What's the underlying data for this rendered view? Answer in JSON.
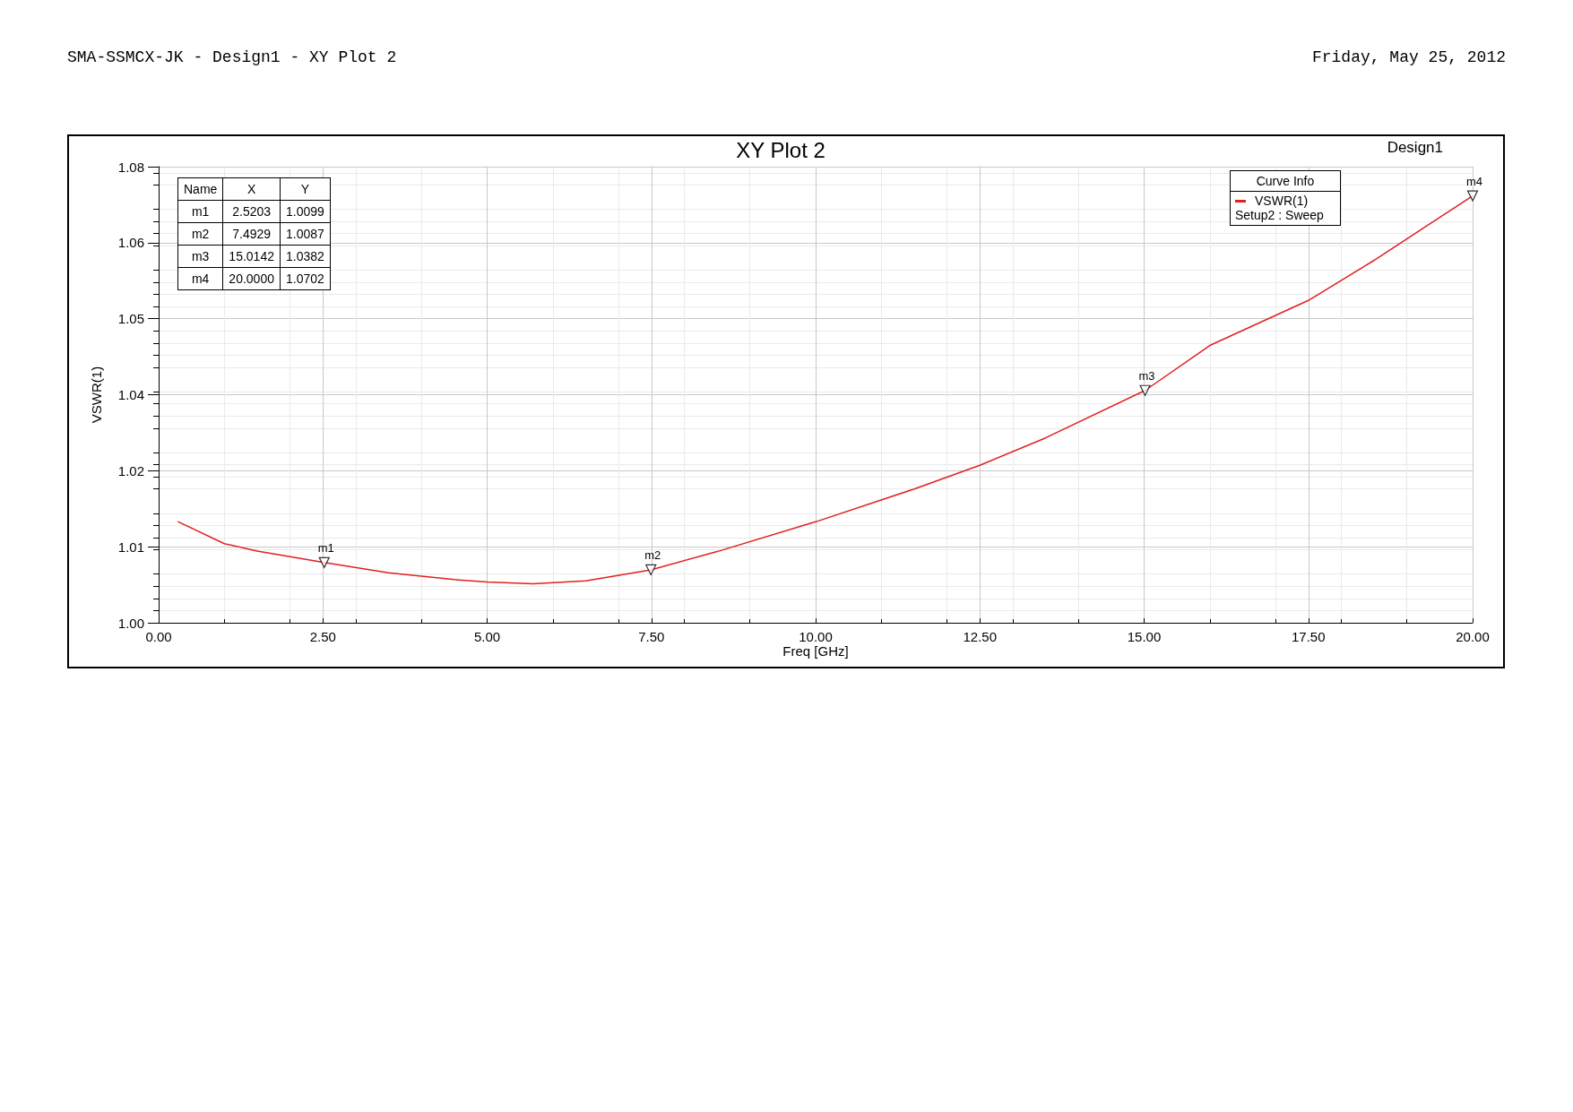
{
  "chart_data": [
    {
      "type": "line",
      "title": "XY Plot 2",
      "xlabel": "Freq [GHz]",
      "ylabel": "VSWR(1)",
      "legend_title": "Curve Info",
      "legend": "top right",
      "grid": true,
      "xlim": [
        0,
        20
      ],
      "xticks": [
        {
          "value": 0,
          "label": "0.00"
        },
        {
          "value": 2.5,
          "label": "2.50"
        },
        {
          "value": 5,
          "label": "5.00"
        },
        {
          "value": 7.5,
          "label": "7.50"
        },
        {
          "value": 10,
          "label": "10.00"
        },
        {
          "value": 12.5,
          "label": "12.50"
        },
        {
          "value": 15,
          "label": "15.00"
        },
        {
          "value": 17.5,
          "label": "17.50"
        },
        {
          "value": 20,
          "label": "20.00"
        }
      ],
      "ylim": [
        1,
        1.075
      ],
      "yticks": [
        {
          "value": 1,
          "label": "1.00"
        },
        {
          "value": 1.0125,
          "label": "1.01"
        },
        {
          "value": 1.025,
          "label": "1.02"
        },
        {
          "value": 1.0375,
          "label": "1.04"
        },
        {
          "value": 1.05,
          "label": "1.05"
        },
        {
          "value": 1.0625,
          "label": "1.06"
        },
        {
          "value": 1.075,
          "label": "1.08"
        }
      ],
      "series": [
        {
          "name": "VSWR(1)",
          "color": "#e0201e",
          "marker": "none",
          "line_style": "solid",
          "x": [
            0.3,
            1.0,
            1.5,
            2.5203,
            3.5,
            4.5,
            5.0,
            5.7,
            6.5,
            7.4929,
            8.5,
            10,
            11.5,
            12.5,
            13.5,
            15.0142,
            16,
            17.5,
            18.5,
            20
          ],
          "values": [
            1.0166,
            1.013,
            1.0118,
            1.0099,
            1.0082,
            1.0071,
            1.0067,
            1.0064,
            1.0069,
            1.0087,
            1.0117,
            1.0166,
            1.022,
            1.0259,
            1.0304,
            1.0382,
            1.0456,
            1.053,
            1.0596,
            1.0702
          ]
        },
        {
          "type": "scatter",
          "color": "#000000",
          "marker": "triangle",
          "x": [
            2.5203,
            7.4929,
            15.0142,
            20.0
          ],
          "values": [
            1.0099,
            1.0087,
            1.0382,
            1.0702
          ]
        }
      ],
      "annotations": [
        {
          "text": "m1",
          "x": 2.5203,
          "y": 1.0099
        },
        {
          "text": "m2",
          "x": 7.4929,
          "y": 1.0087
        },
        {
          "text": "m3",
          "x": 15.0142,
          "y": 1.0382
        },
        {
          "text": "m4",
          "x": 20.0,
          "y": 1.0702
        },
        "SMA-SSMCX-JK - Design1 - XY Plot 2",
        "Friday, May 25, 2012",
        "Design1",
        "Setup2 : Sweep"
      ]
    },
    {
      "type": "other",
      "annotations": [
        "Name",
        "X",
        "Y",
        "m1",
        "2.5203",
        "1.0099",
        "m2",
        "7.4929",
        "1.0087",
        "m3",
        "15.0142",
        "1.0382",
        "m4",
        "20.0000",
        "1.0702"
      ]
    }
  ]
}
